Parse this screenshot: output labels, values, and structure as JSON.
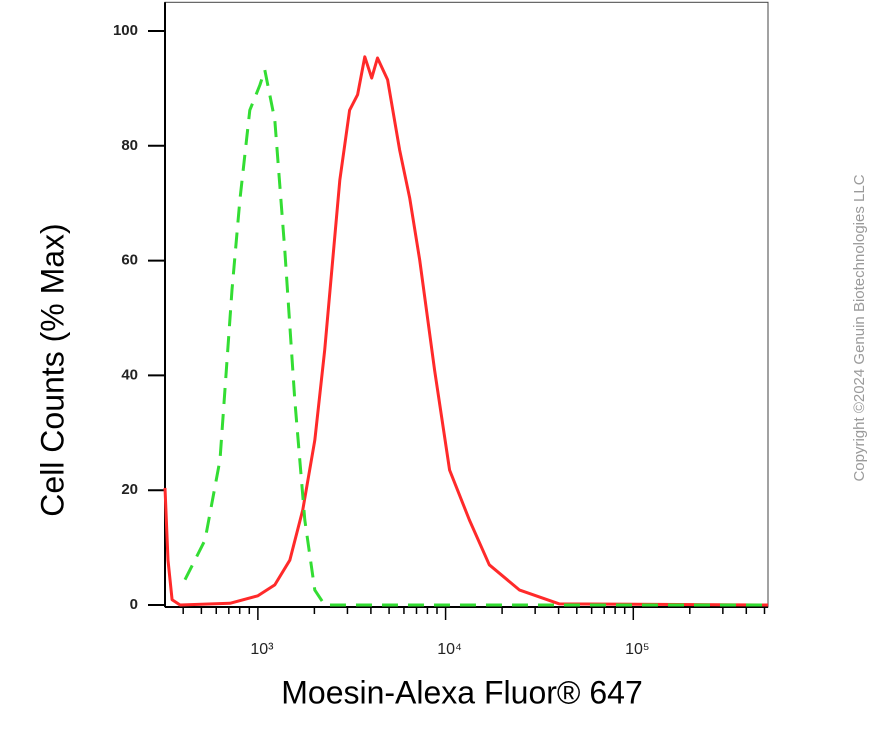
{
  "chart_data": {
    "type": "line",
    "xlabel": "Moesin-Alexa Fluor® 647",
    "ylabel": "Cell Counts (% Max)",
    "watermark": "Copyright ©2024 Genuin Biotechnologies LLC",
    "xscale": "log",
    "xlim": [
      320,
      522000
    ],
    "ylim": [
      0,
      105
    ],
    "xticks": [
      {
        "value": 1000,
        "label": "10³"
      },
      {
        "value": 10000,
        "label": "10⁴"
      },
      {
        "value": 100000,
        "label": "10⁵"
      }
    ],
    "x_minor_ticks": [
      400,
      500,
      600,
      700,
      800,
      900,
      2000,
      3000,
      4000,
      5000,
      6000,
      7000,
      8000,
      9000,
      20000,
      30000,
      40000,
      50000,
      60000,
      70000,
      80000,
      90000,
      200000,
      300000,
      400000,
      500000
    ],
    "yticks": [
      0,
      20,
      40,
      60,
      80,
      100
    ],
    "series": [
      {
        "color": "#ff2a2a",
        "dash": false,
        "x": [
          320,
          332,
          349,
          385,
          710,
          1000,
          1231,
          1480,
          1735,
          2010,
          2270,
          2730,
          3080,
          3400,
          3710,
          4040,
          4340,
          4910,
          5690,
          6440,
          7280,
          8740,
          10500,
          13400,
          17100,
          24800,
          40400,
          522000
        ],
        "values": [
          20.4,
          7.8,
          0.9,
          0,
          0.3,
          1.6,
          3.5,
          7.8,
          16.6,
          28.7,
          44.4,
          74,
          86.2,
          88.9,
          95.5,
          91.8,
          95.3,
          91.5,
          79.3,
          70.9,
          60.1,
          40.9,
          23.5,
          14.8,
          7,
          2.6,
          0.2,
          0
        ]
      },
      {
        "color": "#33dd33",
        "dash": true,
        "x": [
          409,
          523,
          628,
          728,
          802,
          906,
          1025,
          1089,
          1231,
          1392,
          1573,
          1778,
          2010,
          2270,
          522000
        ],
        "values": [
          4.4,
          11.3,
          25.3,
          54.9,
          70.6,
          86.2,
          90.6,
          93.2,
          84.5,
          61.8,
          35.7,
          14.8,
          2.6,
          0,
          0
        ]
      }
    ]
  }
}
